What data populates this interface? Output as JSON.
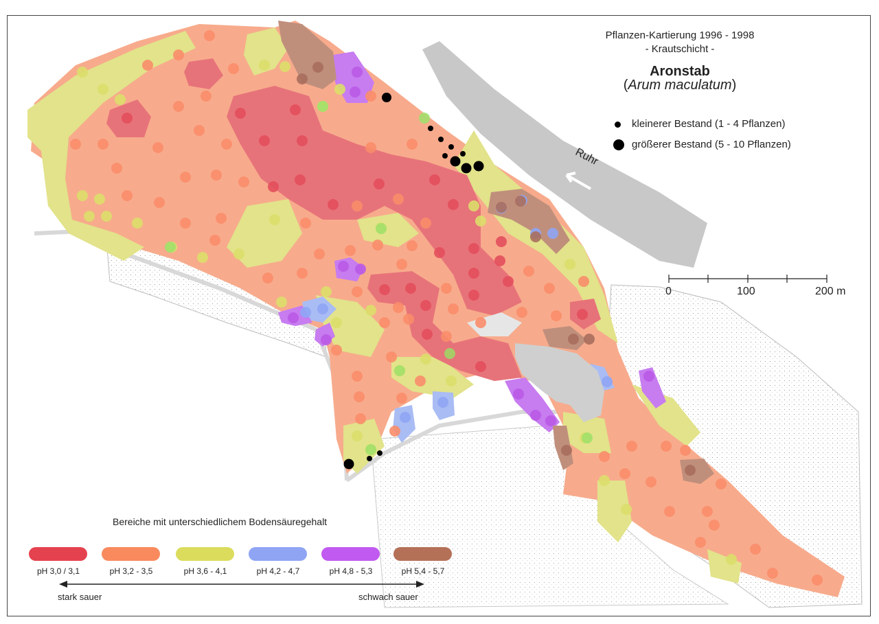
{
  "title": {
    "line1": "Pflanzen-Kartierung 1996 - 1998",
    "line2": "- Krautschicht -",
    "species_common": "Aronstab",
    "species_latin_open": "(",
    "species_latin": "Arum maculatum",
    "species_latin_close": ")"
  },
  "occurrence_legend": {
    "small": "kleinerer Bestand (1 - 4 Pflanzen)",
    "large": "größerer Bestand (5 - 10 Pflanzen)"
  },
  "river_label": "Ruhr",
  "scale": {
    "labels": [
      "0",
      "100",
      "200 m"
    ]
  },
  "ph_legend": {
    "heading": "Bereiche mit unterschiedlichem Bodensäuregehalt",
    "classes": [
      {
        "label": "pH 3,0 / 3,1",
        "color": "#e5424f"
      },
      {
        "label": "pH 3,2 - 3,5",
        "color": "#f98a5d"
      },
      {
        "label": "pH 3,6 - 4,1",
        "color": "#dbdc5c"
      },
      {
        "label": "pH 4,2 - 4,7",
        "color": "#8fa5f4"
      },
      {
        "label": "pH 4,8 - 5,3",
        "color": "#c05af0"
      },
      {
        "label": "pH 5,4 - 5,7",
        "color": "#b57058"
      }
    ],
    "left_label": "stark sauer",
    "right_label": "schwach sauer"
  },
  "colors": {
    "base_salmon": "#f7ab8c",
    "red_zone": "#e7737a",
    "yellow_zone": "#e2e38a",
    "blue_zone": "#a9bcf4",
    "purple_zone": "#c77cf0",
    "brown_zone": "#c08f7c",
    "built_gray": "#cfcfcf",
    "river_gray": "#c8c8c8"
  }
}
